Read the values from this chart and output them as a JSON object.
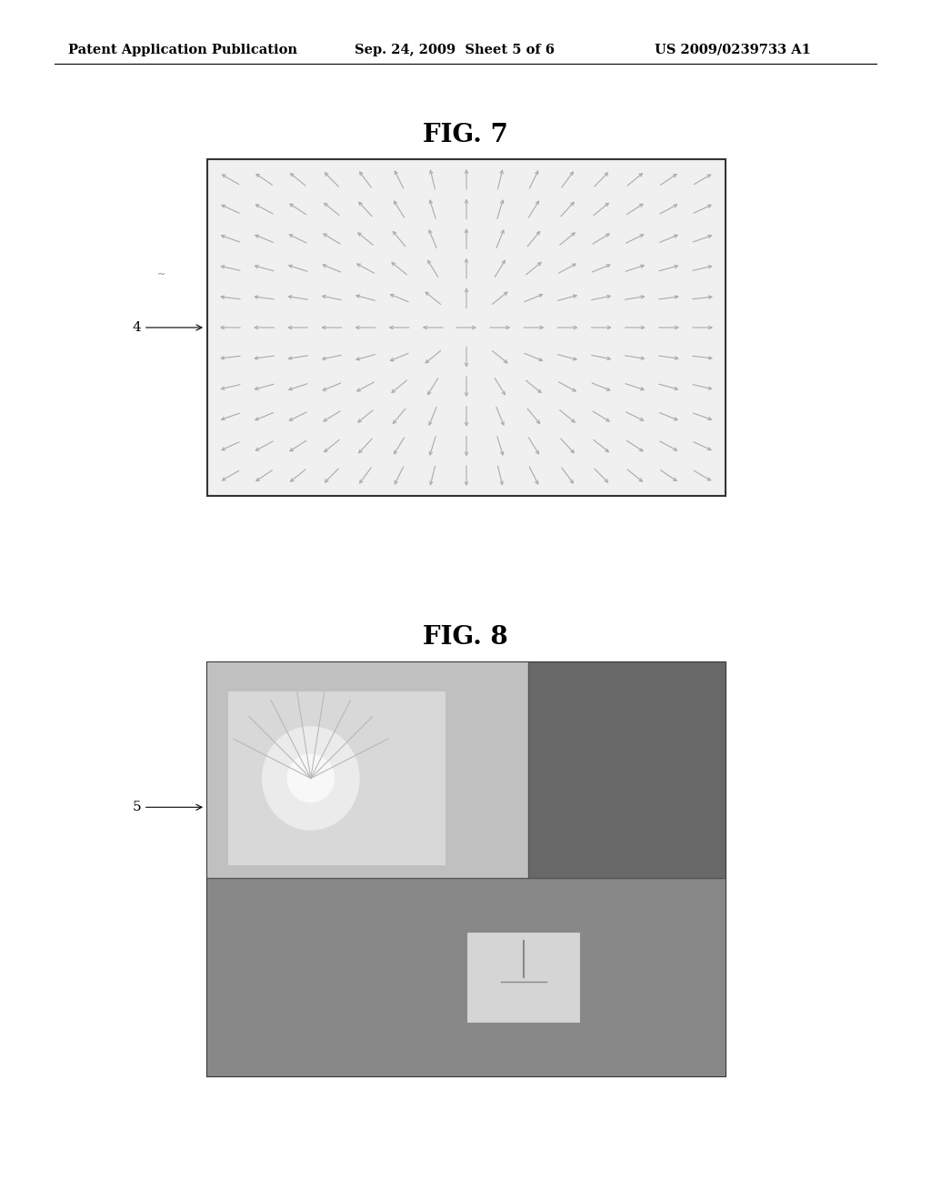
{
  "page_bg": "#ffffff",
  "header_text_left": "Patent Application Publication",
  "header_text_mid": "Sep. 24, 2009  Sheet 5 of 6",
  "header_text_right": "US 2009/0239733 A1",
  "header_fontsize": 10.5,
  "fig7_title": "FIG. 7",
  "fig7_title_fontsize": 20,
  "fig8_title": "FIG. 8",
  "fig8_title_fontsize": 20,
  "label_fontsize": 11
}
